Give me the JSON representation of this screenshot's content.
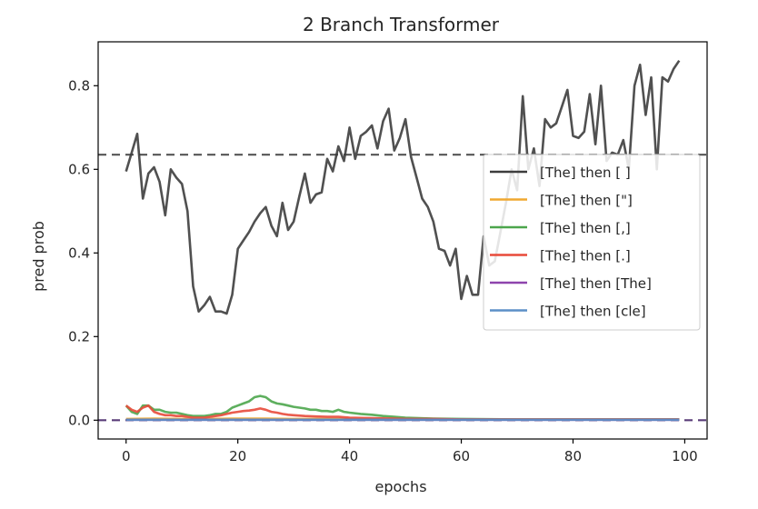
{
  "chart_data": {
    "type": "line",
    "title": "2 Branch Transformer",
    "xlabel": "epochs",
    "ylabel": "pred prob",
    "xlim": [
      -5,
      104
    ],
    "ylim": [
      -0.045,
      0.905
    ],
    "xticks": [
      0,
      20,
      40,
      60,
      80,
      100
    ],
    "yticks": [
      0.0,
      0.2,
      0.4,
      0.6,
      0.8
    ],
    "xtick_labels": [
      "0",
      "20",
      "40",
      "60",
      "80",
      "100"
    ],
    "ytick_labels": [
      "0.0",
      "0.2",
      "0.4",
      "0.6",
      "0.8"
    ],
    "grid": false,
    "legend_position": "right",
    "reference_lines": [
      {
        "y": 0.635,
        "style": "dashed",
        "color": "#555555"
      },
      {
        "y": 0.0,
        "style": "dashed",
        "color": "#5a3d79"
      }
    ],
    "series": [
      {
        "name": "[The] then [ ]",
        "color": "#3d3d3d",
        "x": [
          0,
          1,
          2,
          3,
          4,
          5,
          6,
          7,
          8,
          9,
          10,
          11,
          12,
          13,
          14,
          15,
          16,
          17,
          18,
          19,
          20,
          21,
          22,
          23,
          24,
          25,
          26,
          27,
          28,
          29,
          30,
          31,
          32,
          33,
          34,
          35,
          36,
          37,
          38,
          39,
          40,
          41,
          42,
          43,
          44,
          45,
          46,
          47,
          48,
          49,
          50,
          51,
          52,
          53,
          54,
          55,
          56,
          57,
          58,
          59,
          60,
          61,
          62,
          63,
          64,
          65,
          66,
          67,
          68,
          69,
          70,
          71,
          72,
          73,
          74,
          75,
          76,
          77,
          78,
          79,
          80,
          81,
          82,
          83,
          84,
          85,
          86,
          87,
          88,
          89,
          90,
          91,
          92,
          93,
          94,
          95,
          96,
          97,
          98,
          99
        ],
        "values": [
          0.595,
          0.64,
          0.685,
          0.53,
          0.59,
          0.605,
          0.57,
          0.49,
          0.6,
          0.58,
          0.565,
          0.5,
          0.32,
          0.26,
          0.275,
          0.295,
          0.26,
          0.26,
          0.255,
          0.3,
          0.41,
          0.43,
          0.45,
          0.475,
          0.495,
          0.51,
          0.465,
          0.44,
          0.52,
          0.455,
          0.475,
          0.535,
          0.59,
          0.52,
          0.54,
          0.545,
          0.625,
          0.595,
          0.655,
          0.62,
          0.7,
          0.625,
          0.68,
          0.69,
          0.705,
          0.65,
          0.715,
          0.745,
          0.645,
          0.675,
          0.72,
          0.63,
          0.58,
          0.53,
          0.51,
          0.475,
          0.41,
          0.405,
          0.37,
          0.41,
          0.29,
          0.345,
          0.3,
          0.3,
          0.44,
          0.37,
          0.38,
          0.45,
          0.52,
          0.6,
          0.55,
          0.775,
          0.6,
          0.65,
          0.56,
          0.72,
          0.7,
          0.71,
          0.75,
          0.79,
          0.68,
          0.675,
          0.69,
          0.78,
          0.66,
          0.8,
          0.62,
          0.64,
          0.635,
          0.67,
          0.6,
          0.8,
          0.85,
          0.73,
          0.82,
          0.6,
          0.82,
          0.81,
          0.84,
          0.86
        ]
      },
      {
        "name": "[The] then [\"]",
        "color": "#f0a830",
        "x": [
          0,
          5,
          10,
          15,
          20,
          25,
          30,
          40,
          50,
          60,
          70,
          80,
          90,
          99
        ],
        "values": [
          0.003,
          0.004,
          0.003,
          0.003,
          0.004,
          0.004,
          0.003,
          0.003,
          0.002,
          0.002,
          0.002,
          0.002,
          0.002,
          0.002
        ]
      },
      {
        "name": "[The] then [,]",
        "color": "#4ca64c",
        "x": [
          0,
          1,
          2,
          3,
          4,
          5,
          6,
          7,
          8,
          9,
          10,
          11,
          12,
          13,
          14,
          15,
          16,
          17,
          18,
          19,
          20,
          21,
          22,
          23,
          24,
          25,
          26,
          27,
          28,
          29,
          30,
          31,
          32,
          33,
          34,
          35,
          36,
          37,
          38,
          39,
          40,
          42,
          44,
          46,
          48,
          50,
          55,
          60,
          70,
          80,
          90,
          99
        ],
        "values": [
          0.035,
          0.02,
          0.015,
          0.035,
          0.035,
          0.025,
          0.025,
          0.02,
          0.018,
          0.018,
          0.015,
          0.012,
          0.01,
          0.01,
          0.01,
          0.012,
          0.015,
          0.015,
          0.02,
          0.03,
          0.035,
          0.04,
          0.045,
          0.055,
          0.058,
          0.055,
          0.045,
          0.04,
          0.038,
          0.035,
          0.032,
          0.03,
          0.028,
          0.025,
          0.025,
          0.022,
          0.022,
          0.02,
          0.025,
          0.02,
          0.018,
          0.015,
          0.013,
          0.01,
          0.008,
          0.006,
          0.004,
          0.003,
          0.002,
          0.002,
          0.002,
          0.002
        ]
      },
      {
        "name": "[The] then [.]",
        "color": "#e84a3a",
        "x": [
          0,
          1,
          2,
          3,
          4,
          5,
          6,
          7,
          8,
          9,
          10,
          11,
          12,
          13,
          14,
          15,
          16,
          17,
          18,
          19,
          20,
          21,
          22,
          23,
          24,
          25,
          26,
          27,
          28,
          29,
          30,
          32,
          34,
          36,
          38,
          40,
          44,
          48,
          50,
          55,
          60,
          70,
          80,
          90,
          99
        ],
        "values": [
          0.035,
          0.025,
          0.02,
          0.03,
          0.035,
          0.02,
          0.015,
          0.012,
          0.012,
          0.01,
          0.01,
          0.008,
          0.006,
          0.006,
          0.006,
          0.008,
          0.01,
          0.012,
          0.015,
          0.018,
          0.02,
          0.022,
          0.023,
          0.025,
          0.028,
          0.025,
          0.02,
          0.018,
          0.015,
          0.013,
          0.012,
          0.01,
          0.009,
          0.008,
          0.008,
          0.006,
          0.005,
          0.004,
          0.003,
          0.003,
          0.002,
          0.002,
          0.002,
          0.002,
          0.002
        ]
      },
      {
        "name": "[The] then [The]",
        "color": "#8e44ad",
        "x": [
          0,
          20,
          40,
          60,
          80,
          99
        ],
        "values": [
          0.001,
          0.001,
          0.001,
          0.001,
          0.001,
          0.001
        ]
      },
      {
        "name": "[The] then [cle]",
        "color": "#5b8fc7",
        "x": [
          0,
          20,
          40,
          60,
          80,
          99
        ],
        "values": [
          0.001,
          0.001,
          0.001,
          0.001,
          0.001,
          0.001
        ]
      }
    ]
  }
}
